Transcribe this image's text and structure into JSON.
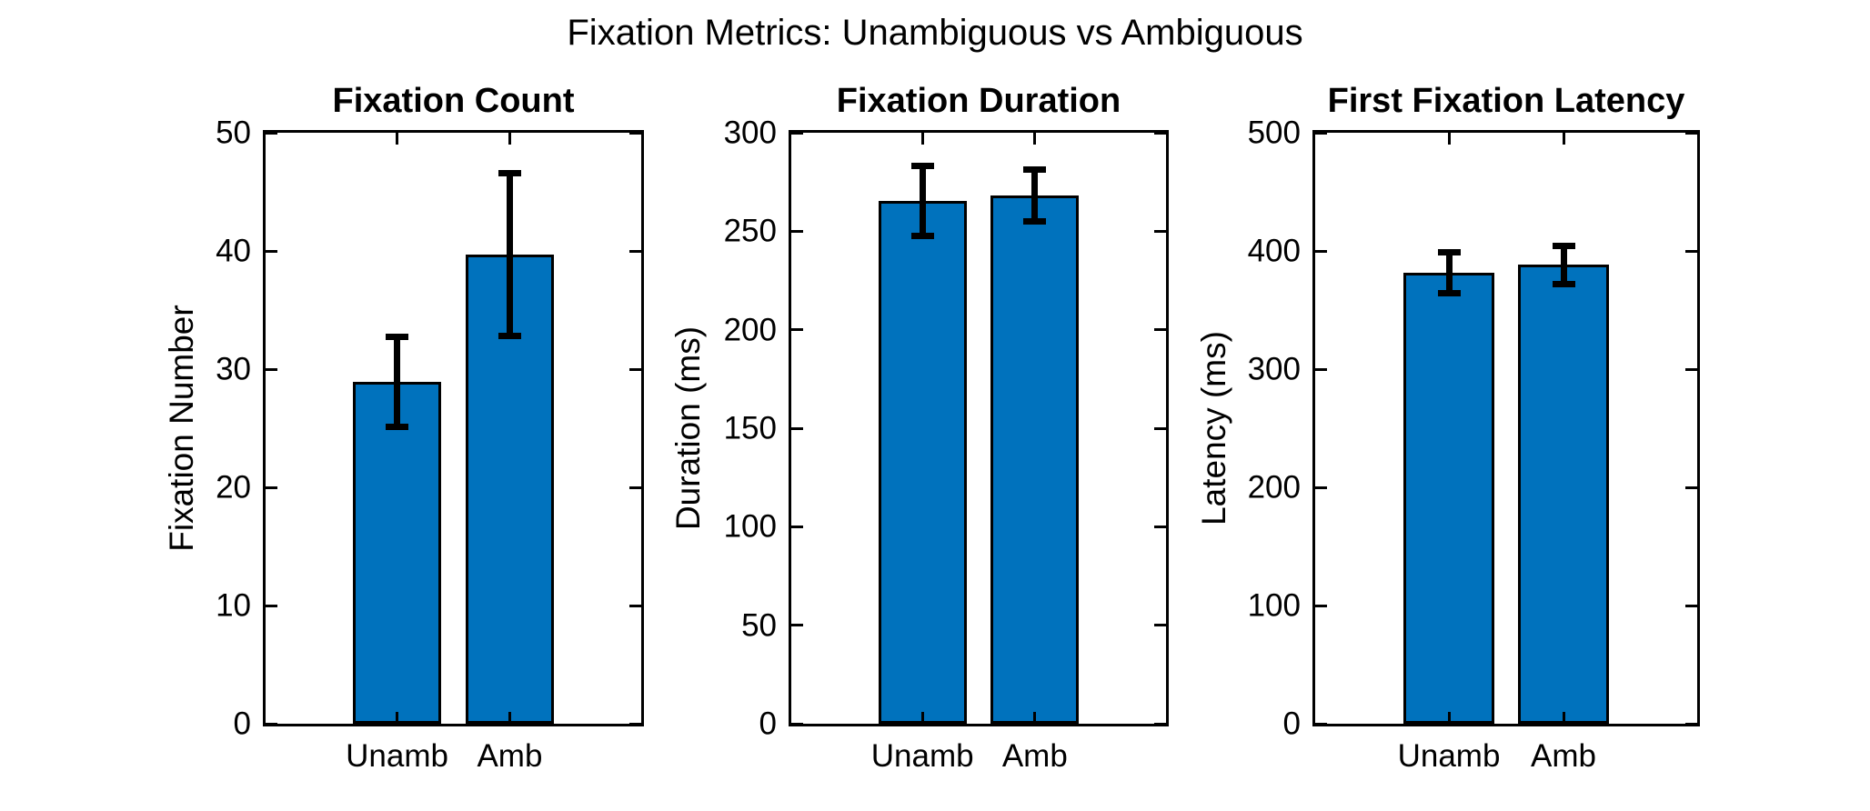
{
  "figure": {
    "title": "Fixation Metrics: Unambiguous vs Ambiguous",
    "background": "#ffffff"
  },
  "style": {
    "bar_fill": "#0072BD",
    "bar_edge": "#000000",
    "error_color": "#000000",
    "text_color": "#000000"
  },
  "chart_data": [
    {
      "type": "bar",
      "title": "Fixation Count",
      "xlabel": "",
      "ylabel": "Fixation Number",
      "categories": [
        "Unamb",
        "Amb"
      ],
      "values": [
        28.9,
        39.7
      ],
      "errors": [
        3.8,
        6.9
      ],
      "ylim": [
        0,
        50
      ],
      "yticks": [
        0,
        10,
        20,
        30,
        40,
        50
      ],
      "grid": false,
      "legend": null
    },
    {
      "type": "bar",
      "title": "Fixation Duration",
      "xlabel": "",
      "ylabel": "Duration (ms)",
      "categories": [
        "Unamb",
        "Amb"
      ],
      "values": [
        265.4,
        268.2
      ],
      "errors": [
        17.8,
        13.0
      ],
      "ylim": [
        0,
        300
      ],
      "yticks": [
        0,
        50,
        100,
        150,
        200,
        250,
        300
      ],
      "grid": false,
      "legend": null
    },
    {
      "type": "bar",
      "title": "First Fixation Latency",
      "xlabel": "",
      "ylabel": "Latency (ms)",
      "categories": [
        "Unamb",
        "Amb"
      ],
      "values": [
        381.5,
        388.1
      ],
      "errors": [
        17.0,
        16.0
      ],
      "ylim": [
        0,
        500
      ],
      "yticks": [
        0,
        100,
        200,
        300,
        400,
        500
      ],
      "grid": false,
      "legend": null
    }
  ]
}
